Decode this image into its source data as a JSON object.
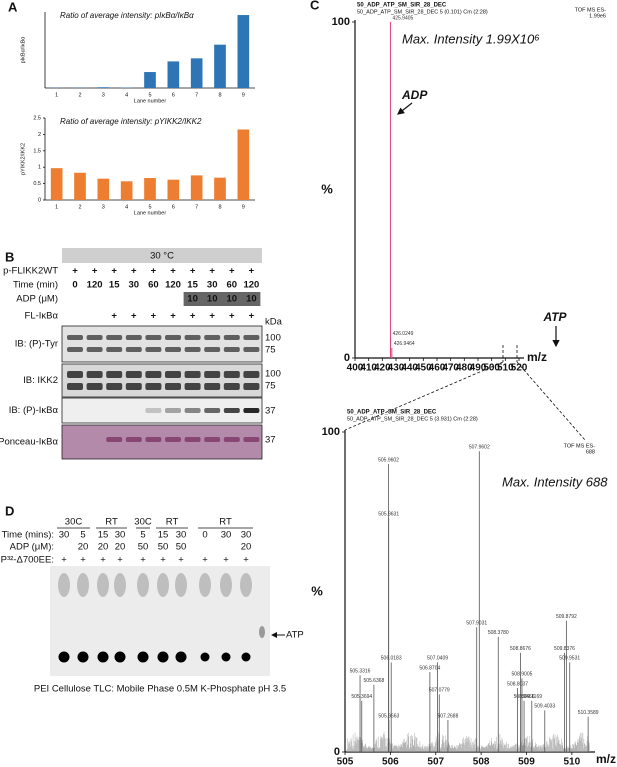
{
  "panel_labels": [
    "A",
    "B",
    "C",
    "D"
  ],
  "chart_data": [
    {
      "type": "bar",
      "title": "Ratio of average intensity: pIκBα/IκBα",
      "y_label": "pIκBα/IκBα",
      "x_label": "Lane number",
      "categories": [
        "1",
        "2",
        "3",
        "4",
        "5",
        "6",
        "7",
        "8",
        "9"
      ],
      "values": [
        0.3,
        0.3,
        1,
        0.6,
        21,
        35,
        39,
        57,
        96
      ],
      "color": "#2e75b6",
      "ylim": [
        0,
        100
      ]
    },
    {
      "type": "bar",
      "title": "Ratio of average intensity: pYIKK2/IKK2",
      "y_label": "pYIKK2/IKK2",
      "x_label": "Lane number",
      "categories": [
        "1",
        "2",
        "3",
        "4",
        "5",
        "6",
        "7",
        "8",
        "9"
      ],
      "values": [
        0.97,
        0.83,
        0.65,
        0.57,
        0.67,
        0.62,
        0.75,
        0.68,
        2.15
      ],
      "color": "#ed7d31",
      "ylim": [
        0,
        2.5
      ],
      "yticks": [
        0,
        0.5,
        1,
        1.5,
        2,
        2.5
      ]
    },
    {
      "type": "spectrum",
      "header": [
        "50_ADP_ATP_SM_SIR_28_DEC",
        "50_ADP_ATP_SM_SIR_28_DEC 5 (0.101) Cm (2:28)"
      ],
      "instrument": [
        "TOF MS ES-",
        "1.99e6"
      ],
      "annotation": "Max. Intensity 1.99X10⁶",
      "arrow_labels": [
        "ADP",
        "ATP"
      ],
      "x_label": "m/z",
      "y_label": "%",
      "color": "#e0457b",
      "x": [
        425.9405,
        426.0249,
        426.9464
      ],
      "x_labels": [
        "425.9405",
        "426.0249",
        "426.9464"
      ],
      "values": [
        100,
        6,
        3
      ],
      "xlim": [
        400,
        520
      ],
      "xticks": [
        400,
        410,
        420,
        430,
        440,
        450,
        460,
        470,
        480,
        490,
        500,
        510,
        520
      ],
      "ylim": [
        0,
        100
      ],
      "yticks": [
        0,
        100
      ]
    },
    {
      "type": "spectrum",
      "header": [
        "50_ADP_ATP_SM_SIR_28_DEC",
        "50_ADP_ATP_SM_SIR_28_DEC 5 (3.931) Cm (2:28)"
      ],
      "instrument": [
        "TOF MS ES-",
        "688"
      ],
      "annotation": "Max. Intensity 688",
      "x_label": "m/z",
      "y_label": "%",
      "color": "#555",
      "x": [
        505.3316,
        505.3694,
        505.6368,
        505.9602,
        505.9631,
        505.9663,
        506.0183,
        506.8704,
        507.0409,
        507.0779,
        507.2688,
        507.9602,
        507.9031,
        508.378,
        508.8037,
        508.8676,
        508.9005,
        508.9466,
        509.1169,
        509.4033,
        509.8376,
        509.8792,
        509.9531,
        510.3589
      ],
      "x_labels": [
        "505.3316",
        "505.3694",
        "505.6368",
        "505.9602",
        "505.9631",
        "505.9663",
        "506.0183",
        "506.8704",
        "507.0409",
        "507.0779",
        "507.2688",
        "507.9602",
        "507.9031",
        "508.3780",
        "508.8037",
        "508.8676",
        "508.9005",
        "508.9466",
        "509.1169",
        "509.4033",
        "509.8376",
        "509.8792",
        "509.9531",
        "510.3589"
      ],
      "values": [
        24,
        16,
        21,
        90,
        73,
        10,
        28,
        25,
        28,
        18,
        10,
        94,
        39,
        36,
        20,
        31,
        23,
        16,
        16,
        13,
        31,
        41,
        28,
        11
      ],
      "xlim": [
        505,
        510.4
      ],
      "xticks": [
        505,
        506,
        507,
        508,
        509,
        510
      ],
      "ylim": [
        0,
        100
      ],
      "yticks": [
        0,
        100
      ]
    }
  ],
  "panel_b": {
    "temperature": "30 °C",
    "rows": [
      {
        "label": "p-FLIKK2WT",
        "cells": [
          "+",
          "+",
          "+",
          "+",
          "+",
          "+",
          "+",
          "+",
          "+",
          "+"
        ]
      },
      {
        "label": "Time (min)",
        "cells": [
          "0",
          "120",
          "15",
          "30",
          "60",
          "120",
          "15",
          "30",
          "60",
          "120"
        ]
      },
      {
        "label": "ADP (μM)",
        "cells": [
          null,
          null,
          null,
          null,
          null,
          null,
          "10",
          "10",
          "10",
          "10"
        ]
      },
      {
        "label": "FL-IκBα",
        "cells": [
          null,
          null,
          "+",
          "+",
          "+",
          "+",
          "+",
          "+",
          "+",
          "+"
        ]
      }
    ],
    "kda": "kDa",
    "blots": [
      {
        "label": "IB: (P)-Tyr",
        "markers": [
          "100",
          "75"
        ]
      },
      {
        "label": "IB: IKK2",
        "markers": [
          "100",
          "75"
        ]
      },
      {
        "label": "IB: (P)-IκBα",
        "markers": [
          "37"
        ]
      },
      {
        "label": "Ponceau-IκBα",
        "markers": [
          "37"
        ]
      }
    ]
  },
  "panel_d": {
    "groups": [
      "30C",
      "RT",
      "30C",
      "RT",
      "RT"
    ],
    "rows": [
      {
        "label": "Time (mins):",
        "cells": [
          "30",
          "5",
          "15",
          "30",
          "5",
          "15",
          "30",
          "0",
          "30",
          "30"
        ]
      },
      {
        "label": "ADP (μM):",
        "cells": [
          null,
          "20",
          "20",
          "20",
          "50",
          "50",
          "50",
          null,
          null,
          "20"
        ]
      },
      {
        "label": "P³²-Δ700EE:",
        "cells": [
          "+",
          "+",
          "+",
          "+",
          "+",
          "+",
          "+",
          "+",
          "+",
          "+"
        ]
      }
    ],
    "atp_label": "ATP",
    "caption": "PEI Cellulose TLC: Mobile Phase 0.5M K-Phosphate pH 3.5"
  }
}
